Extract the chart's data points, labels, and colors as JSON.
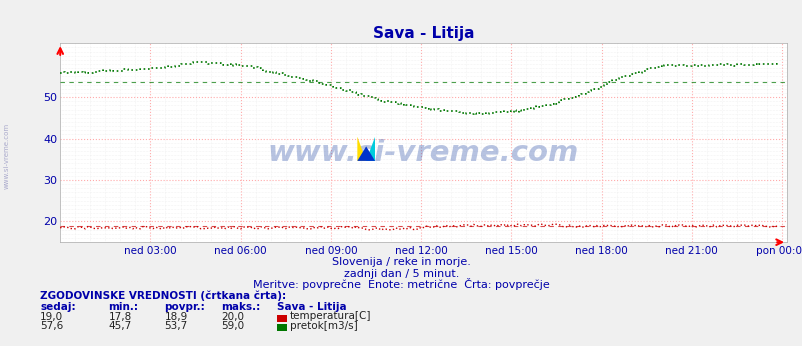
{
  "title": "Sava - Litija",
  "background_color": "#f0f0f0",
  "plot_bg_color": "#ffffff",
  "grid_color_major": "#ffaaaa",
  "grid_color_minor": "#e8e8e8",
  "x_labels": [
    "ned 03:00",
    "ned 06:00",
    "ned 09:00",
    "ned 12:00",
    "ned 15:00",
    "ned 18:00",
    "ned 21:00",
    "pon 00:00"
  ],
  "x_ticks": [
    36,
    72,
    108,
    144,
    180,
    216,
    252,
    288
  ],
  "y_ticks": [
    20,
    30,
    40,
    50
  ],
  "ylim": [
    15,
    63
  ],
  "xlim": [
    0,
    290
  ],
  "subtitle1": "Slovenija / reke in morje.",
  "subtitle2": "zadnji dan / 5 minut.",
  "subtitle3": "Meritve: povprečne  Enote: metrične  Črta: povprečje",
  "legend_title": "ZGODOVINSKE VREDNOSTI (črtkana črta):",
  "legend_headers": [
    "sedaj:",
    "min.:",
    "povpr.:",
    "maks.:",
    "Sava - Litija"
  ],
  "legend_row1": [
    "19,0",
    "17,8",
    "18,9",
    "20,0",
    "temperatura[C]"
  ],
  "legend_row2": [
    "57,6",
    "45,7",
    "53,7",
    "59,0",
    "pretok[m3/s]"
  ],
  "temp_color": "#cc0000",
  "flow_color": "#007700",
  "axis_color": "#000088",
  "text_color": "#0000aa",
  "watermark": "www.si-vreme.com",
  "watermark_color": "#3355aa",
  "n_points": 288,
  "temp_avg": 18.9,
  "flow_avg": 53.7
}
